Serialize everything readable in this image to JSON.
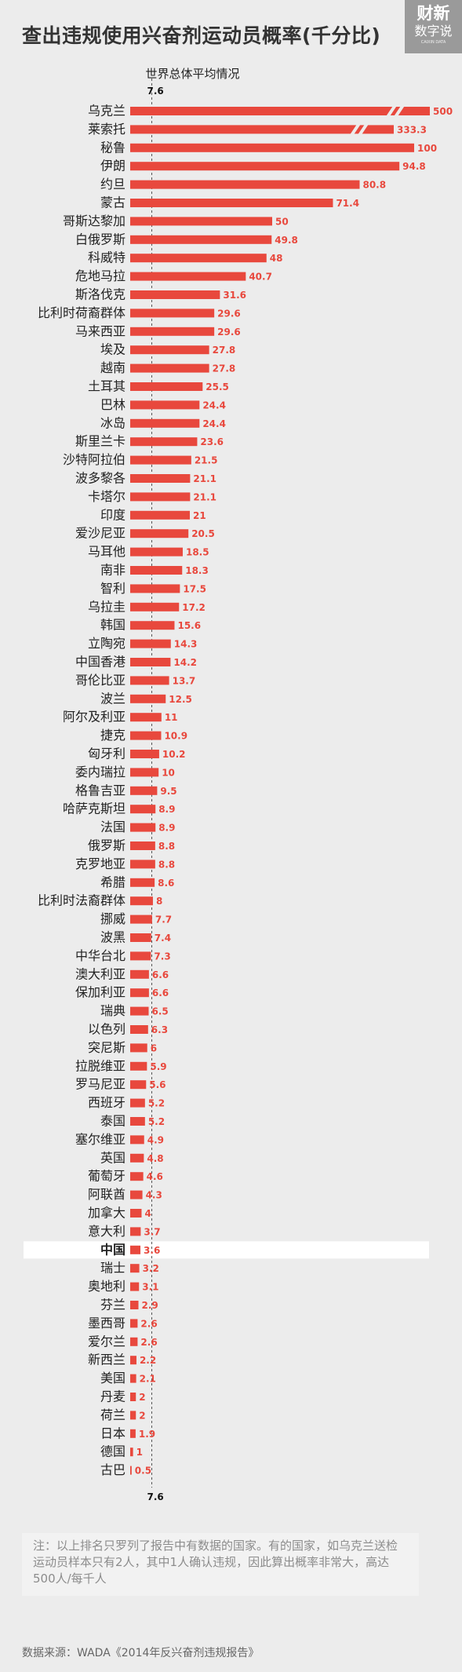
{
  "title": "查出违规使用兴奋剂运动员概率(千分比)",
  "logo": {
    "line1": "财新",
    "line2": "数字说",
    "line3": "CAIXIN DATA"
  },
  "chart_data": {
    "type": "bar",
    "orientation": "horizontal",
    "unit": "千分比",
    "reference_line": {
      "label": "世界总体平均情况",
      "value": 7.6
    },
    "highlight_category": "中国",
    "axis_breaks": [
      "乌克兰",
      "莱索托"
    ],
    "categories": [
      "乌克兰",
      "莱索托",
      "秘鲁",
      "伊朗",
      "约旦",
      "蒙古",
      "哥斯达黎加",
      "白俄罗斯",
      "科威特",
      "危地马拉",
      "斯洛伐克",
      "比利时荷裔群体",
      "马来西亚",
      "埃及",
      "越南",
      "土耳其",
      "巴林",
      "冰岛",
      "斯里兰卡",
      "沙特阿拉伯",
      "波多黎各",
      "卡塔尔",
      "印度",
      "爱沙尼亚",
      "马耳他",
      "南非",
      "智利",
      "乌拉圭",
      "韩国",
      "立陶宛",
      "中国香港",
      "哥伦比亚",
      "波兰",
      "阿尔及利亚",
      "捷克",
      "匈牙利",
      "委内瑞拉",
      "格鲁吉亚",
      "哈萨克斯坦",
      "法国",
      "俄罗斯",
      "克罗地亚",
      "希腊",
      "比利时法裔群体",
      "挪威",
      "波黑",
      "中华台北",
      "澳大利亚",
      "保加利亚",
      "瑞典",
      "以色列",
      "突尼斯",
      "拉脱维亚",
      "罗马尼亚",
      "西班牙",
      "泰国",
      "塞尔维亚",
      "英国",
      "葡萄牙",
      "阿联酋",
      "加拿大",
      "意大利",
      "中国",
      "瑞士",
      "奥地利",
      "芬兰",
      "墨西哥",
      "爱尔兰",
      "新西兰",
      "美国",
      "丹麦",
      "荷兰",
      "日本",
      "德国",
      "古巴"
    ],
    "values": [
      500,
      333.3,
      100,
      94.8,
      80.8,
      71.4,
      50,
      49.8,
      48,
      40.7,
      31.6,
      29.6,
      29.6,
      27.8,
      27.8,
      25.5,
      24.4,
      24.4,
      23.6,
      21.5,
      21.1,
      21.1,
      21,
      20.5,
      18.5,
      18.3,
      17.5,
      17.2,
      15.6,
      14.3,
      14.2,
      13.7,
      12.5,
      11,
      10.9,
      10.2,
      10,
      9.5,
      8.9,
      8.9,
      8.8,
      8.8,
      8.6,
      8,
      7.7,
      7.4,
      7.3,
      6.6,
      6.6,
      6.5,
      6.3,
      6,
      5.9,
      5.6,
      5.2,
      5.2,
      4.9,
      4.8,
      4.6,
      4.3,
      4,
      3.7,
      3.6,
      3.2,
      3.1,
      2.9,
      2.6,
      2.6,
      2.2,
      2.1,
      2,
      2,
      1.9,
      1,
      0.5
    ],
    "value_labels": [
      "500",
      "333.3",
      "100",
      "94.8",
      "80.8",
      "71.4",
      "50",
      "49.8",
      "48",
      "40.7",
      "31.6",
      "29.6",
      "29.6",
      "27.8",
      "27.8",
      "25.5",
      "24.4",
      "24.4",
      "23.6",
      "21.5",
      "21.1",
      "21.1",
      "21",
      "20.5",
      "18.5",
      "18.3",
      "17.5",
      "17.2",
      "15.6",
      "14.3",
      "14.2",
      "13.7",
      "12.5",
      "11",
      "10.9",
      "10.2",
      "10",
      "9.5",
      "8.9",
      "8.9",
      "8.8",
      "8.8",
      "8.6",
      "8",
      "7.7",
      "7.4",
      "7.3",
      "6.6",
      "6.6",
      "6.5",
      "6.3",
      "6",
      "5.9",
      "5.6",
      "5.2",
      "5.2",
      "4.9",
      "4.8",
      "4.6",
      "4.3",
      "4",
      "3.7",
      "3.6",
      "3.2",
      "3.1",
      "2.9",
      "2.6",
      "2.6",
      "2.2",
      "2.1",
      "2",
      "2",
      "1.9",
      "1",
      "0.5"
    ],
    "colors": {
      "bar": "#e8483d",
      "highlight_bg": "#ffffff",
      "reference": "#222222",
      "text": "#222222"
    }
  },
  "note": "注：以上排名只罗列了报告中有数据的国家。有的国家，如乌克兰送检运动员样本只有2人，其中1人确认违规，因此算出概率非常大，高达500人/每千人",
  "source": "数据来源：WADA《2014年反兴奋剂违规报告》"
}
